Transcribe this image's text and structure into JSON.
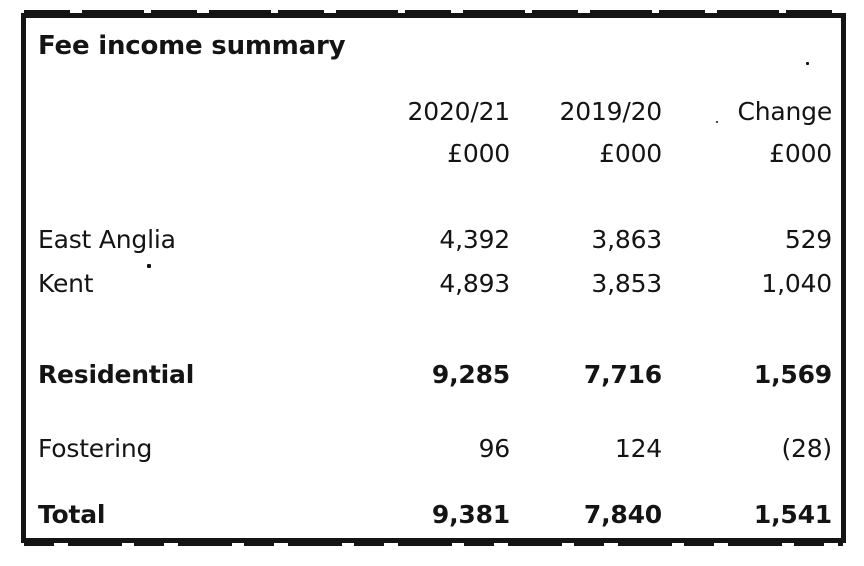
{
  "table": {
    "title": "Fee income summary",
    "header": {
      "col_current": "2020/21",
      "col_prior": "2019/20",
      "col_change": "Change",
      "unit_current": "£000",
      "unit_prior": "£000",
      "unit_change": "£000"
    },
    "rows": [
      {
        "label": "East Anglia",
        "current": "4,392",
        "prior": "3,863",
        "change": "529"
      },
      {
        "label": "Kent",
        "current": "4,893",
        "prior": "3,853",
        "change": "1,040"
      },
      {
        "label": "Residential",
        "current": "9,285",
        "prior": "7,716",
        "change": "1,569"
      },
      {
        "label": "Fostering",
        "current": "96",
        "prior": "124",
        "change": "(28)"
      },
      {
        "label": "Total",
        "current": "9,381",
        "prior": "7,840",
        "change": "1,541"
      }
    ]
  }
}
